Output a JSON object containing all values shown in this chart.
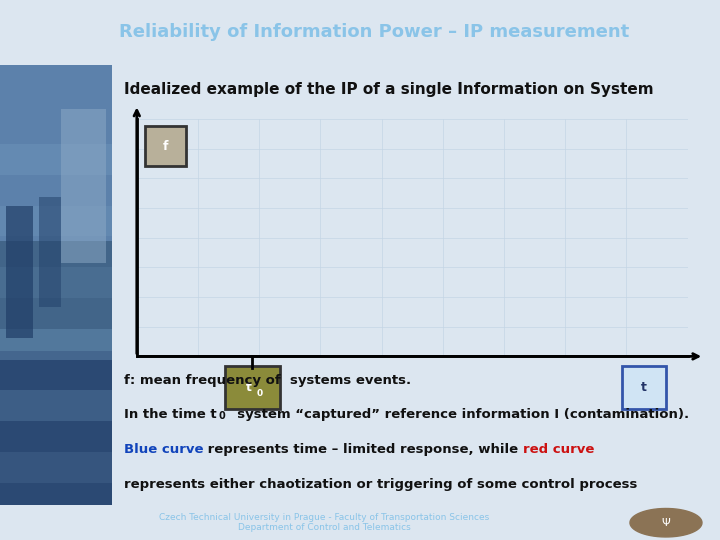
{
  "title": "Reliability of Information Power – IP measurement",
  "subtitle": "Idealized example of the IP of a single Information on System",
  "title_bg": "#1e3f7a",
  "title_color": "#8ac4e8",
  "slide_bg": "#dce6f0",
  "graph_bg": "#ffffff",
  "footer_text": "Czech Technical University in Prague - Faculty of Transportation Sciences\nDepartment of Control and Telematics",
  "footer_bg": "#1e3f7a",
  "footer_color": "#8ac4e8",
  "f_label": "f",
  "f_box_color": "#b8b09a",
  "f_box_edge": "#333333",
  "t0_label": "t",
  "t0_sub": "0",
  "t0_box_color": "#8b8b3a",
  "t0_box_edge": "#333333",
  "t_label": "t",
  "t_box_color": "#d0e4f4",
  "t_box_edge": "#3355aa",
  "body_text_line1": "f: mean frequency of  systems events.",
  "body_text_line2_pre": "In the time t",
  "body_text_line2_sub": "0",
  "body_text_line2_post": "  system “captured” reference information I (contamination).",
  "body_text_line3_blue": "Blue curve",
  "body_text_line3_mid": " represents time – limited response, while ",
  "body_text_line3_red": "red curve",
  "body_text_line4": "represents either chaotization or triggering of some control process",
  "blue_color": "#1144bb",
  "red_color": "#cc1111",
  "black_color": "#111111",
  "grid_color": "#c5d5e5"
}
